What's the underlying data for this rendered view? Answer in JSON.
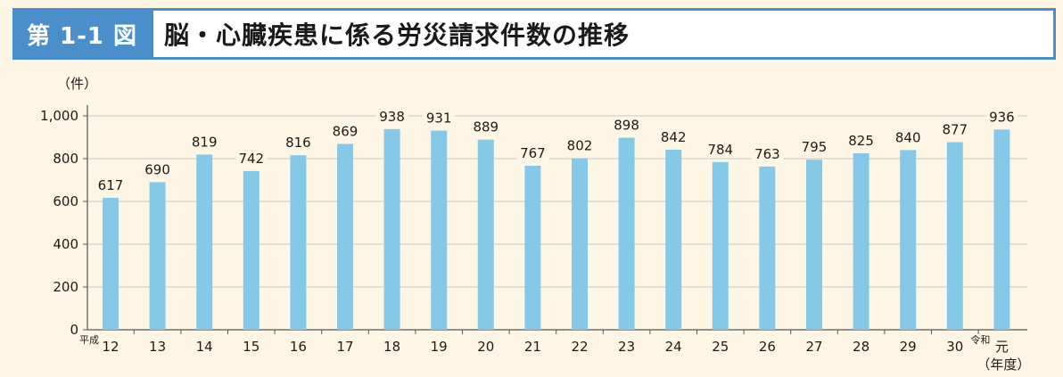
{
  "figure": {
    "number": "第 1-1 図",
    "title": "脳・心臓疾患に係る労災請求件数の推移"
  },
  "chart_data": {
    "type": "bar",
    "title": "脳・心臓疾患に係る労災請求件数の推移",
    "ylabel": "（件）",
    "xlabel": "（年度）",
    "ylim": [
      0,
      1000
    ],
    "yticks": [
      0,
      200,
      400,
      600,
      800,
      1000
    ],
    "ytick_labels": [
      "0",
      "200",
      "400",
      "600",
      "800",
      "1,000"
    ],
    "grid": true,
    "era_labels": {
      "heisei": "平成",
      "reiwa": "令和"
    },
    "categories": [
      "12",
      "13",
      "14",
      "15",
      "16",
      "17",
      "18",
      "19",
      "20",
      "21",
      "22",
      "23",
      "24",
      "25",
      "26",
      "27",
      "28",
      "29",
      "30",
      "元"
    ],
    "values": [
      617,
      690,
      819,
      742,
      816,
      869,
      938,
      931,
      889,
      767,
      802,
      898,
      842,
      784,
      763,
      795,
      825,
      840,
      877,
      936
    ],
    "colors": {
      "bar": "#86c8e8",
      "grid": "#c8c8c8",
      "axis": "#555555",
      "frame": "#4a8fcb"
    }
  }
}
